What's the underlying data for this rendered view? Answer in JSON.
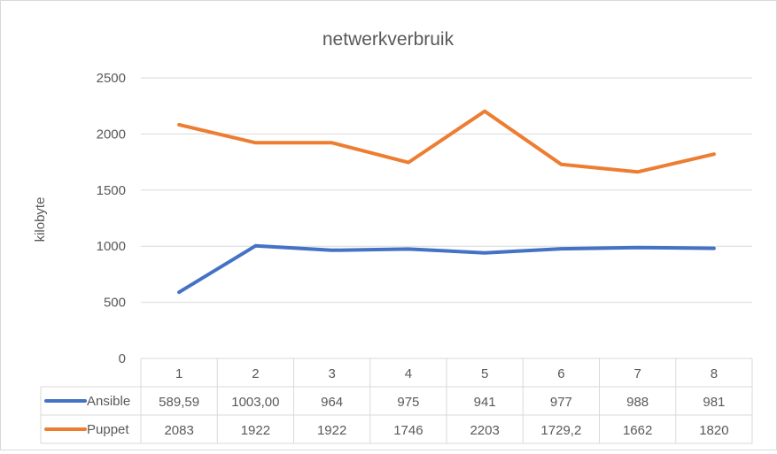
{
  "chart_data": {
    "type": "line",
    "title": "netwerkverbruik",
    "ylabel": "kilobyte",
    "xlabel": "",
    "ylim": [
      0,
      2500
    ],
    "yticks": [
      "0",
      "500",
      "1000",
      "1500",
      "2000",
      "2500"
    ],
    "grid": true,
    "legend": "data-table",
    "categories": [
      "1",
      "2",
      "3",
      "4",
      "5",
      "6",
      "7",
      "8"
    ],
    "series": [
      {
        "name": "Ansible",
        "color": "#4472c4",
        "values": [
          589.59,
          1003.0,
          964,
          975,
          941,
          977,
          988,
          981
        ],
        "labels": [
          "589,59",
          "1003,00",
          "964",
          "975",
          "941",
          "977",
          "988",
          "981"
        ]
      },
      {
        "name": "Puppet",
        "color": "#ed7d31",
        "values": [
          2083,
          1922,
          1922,
          1746,
          2203,
          1729.2,
          1662,
          1820
        ],
        "labels": [
          "2083",
          "1922",
          "1922",
          "1746",
          "2203",
          "1729,2",
          "1662",
          "1820"
        ]
      }
    ]
  }
}
